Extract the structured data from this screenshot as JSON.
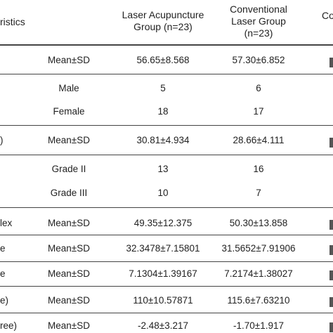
{
  "table": {
    "header": {
      "characteristics": "ristics",
      "group_a_line1": "Laser Acupuncture",
      "group_a_line2": "Group (n=23)",
      "group_b_line1": "Conventional",
      "group_b_line2": "Laser Group",
      "group_b_line3": "(n=23)",
      "group_c": "Co"
    },
    "rows": [
      {
        "label": "",
        "stat": "Mean±SD",
        "a": "56.65±8.568",
        "b": "57.30±6.852"
      },
      {
        "label": "",
        "stat": "Male",
        "a": "5",
        "b": "6"
      },
      {
        "label": "",
        "stat": "Female",
        "a": "18",
        "b": "17"
      },
      {
        "label": ")",
        "stat": "Mean±SD",
        "a": "30.81±4.934",
        "b": "28.66±4.111"
      },
      {
        "label": "",
        "stat": "Grade II",
        "a": "13",
        "b": "16"
      },
      {
        "label": "",
        "stat": "Grade III",
        "a": "10",
        "b": "7"
      },
      {
        "label": "lex",
        "stat": "Mean±SD",
        "a": "49.35±12.375",
        "b": "50.30±13.858"
      },
      {
        "label": "e",
        "stat": "Mean±SD",
        "a": "32.3478±7.15801",
        "b": "31.5652±7.91906"
      },
      {
        "label": "e",
        "stat": "Mean±SD",
        "a": "7.1304±1.39167",
        "b": "7.2174±1.38027"
      },
      {
        "label": "e)",
        "stat": "Mean±SD",
        "a": "110±10.57871",
        "b": "115.6±7.63210"
      },
      {
        "label": "ree)",
        "stat": "Mean±SD",
        "a": "-2.48±3.217",
        "b": "-1.70±1.917"
      }
    ]
  }
}
